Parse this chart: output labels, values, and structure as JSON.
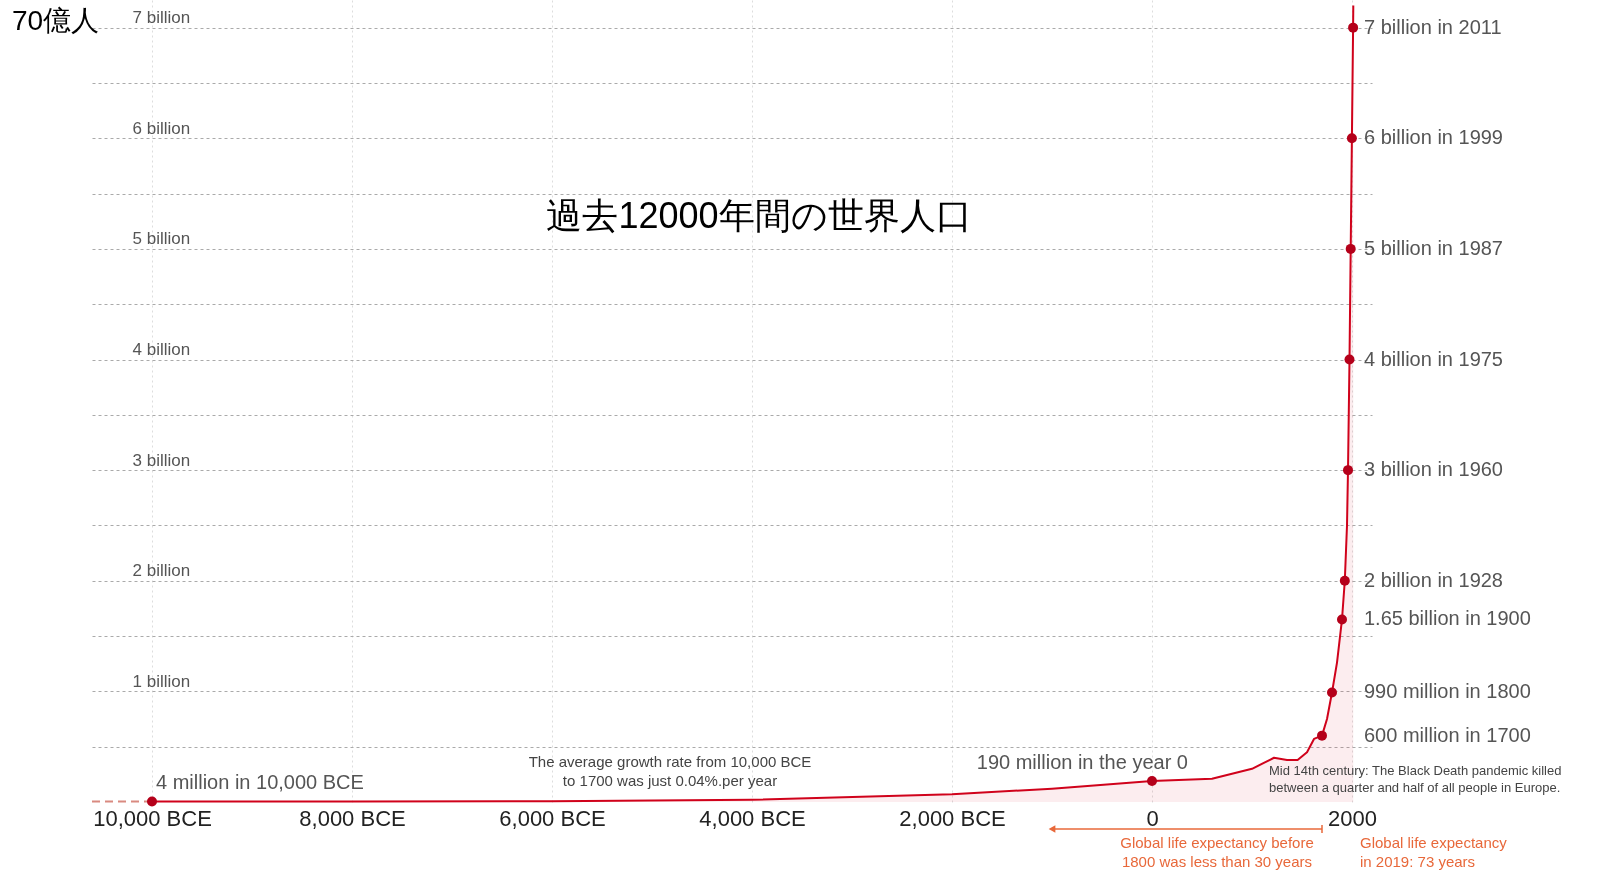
{
  "chart_data": {
    "type": "area",
    "title": "過去12000年間の世界人口",
    "ylabel": "70億人",
    "xlim": [
      -10600,
      2200
    ],
    "ylim": [
      0,
      7.25
    ],
    "xticks": [
      {
        "value": -10000,
        "label": "10,000 BCE"
      },
      {
        "value": -8000,
        "label": "8,000 BCE"
      },
      {
        "value": -6000,
        "label": "6,000 BCE"
      },
      {
        "value": -4000,
        "label": "4,000 BCE"
      },
      {
        "value": -2000,
        "label": "2,000 BCE"
      },
      0,
      2000
    ],
    "yticks": [
      {
        "value": 0.5,
        "label": null
      },
      {
        "value": 1,
        "label": "1 billion"
      },
      {
        "value": 1.5,
        "label": null
      },
      {
        "value": 2,
        "label": "2 billion"
      },
      {
        "value": 2.5,
        "label": null
      },
      {
        "value": 3,
        "label": "3 billion"
      },
      {
        "value": 3.5,
        "label": null
      },
      {
        "value": 4,
        "label": "4 billion"
      },
      {
        "value": 4.5,
        "label": null
      },
      {
        "value": 5,
        "label": "5 billion"
      },
      {
        "value": 5.5,
        "label": null
      },
      {
        "value": 6,
        "label": "6 billion"
      },
      {
        "value": 6.5,
        "label": null
      },
      {
        "value": 7,
        "label": "7 billion"
      }
    ],
    "grid": true,
    "series": [
      {
        "color": "#d0021b",
        "x": [
          -10000,
          -8000,
          -6000,
          -4000,
          -2000,
          -1000,
          0,
          600,
          1000,
          1220,
          1350,
          1456,
          1550,
          1620,
          1700,
          1750,
          1800,
          1850,
          1900,
          1928,
          1950,
          1960,
          1975,
          1987,
          1999,
          2011,
          2013
        ],
        "values": [
          0.004,
          0.005,
          0.007,
          0.02,
          0.07,
          0.12,
          0.19,
          0.21,
          0.3,
          0.4,
          0.38,
          0.38,
          0.45,
          0.57,
          0.6,
          0.75,
          0.99,
          1.26,
          1.65,
          2,
          2.5,
          3,
          4,
          5,
          6,
          7,
          7.2
        ]
      },
      {
        "type": "line",
        "color": "#d98a80",
        "line_style": "dashed",
        "x": [
          -10600,
          -10000
        ],
        "values": [
          0.004,
          0.004
        ]
      },
      {
        "type": "scatter",
        "color": "#b5001a",
        "marker": "circle",
        "x": [
          -10000,
          0,
          1700,
          1800,
          1900,
          1928,
          1960,
          1975,
          1987,
          1999,
          2011
        ],
        "values": [
          0.004,
          0.19,
          0.6,
          0.99,
          1.65,
          2,
          3,
          4,
          5,
          6,
          7
        ],
        "value_labels": [
          "4 million in 10,000 BCE",
          "190 million in the year 0",
          "600 million in 1700",
          "990 million in 1800",
          "1.65 billion in 1900",
          "2 billion in 1928",
          "3 billion in 1960",
          "4 billion in 1975",
          "5 billion in 1987",
          "6 billion in 1999",
          "7 billion in 2011"
        ]
      }
    ],
    "annotations": [
      "The average growth rate from 10,000 BCE\nto 1700 was just  0.04%.per year",
      "Mid 14th century: The Black Death pandemic killed\nbetween a quarter and half of all people in Europe.",
      "Global life expectancy before\n1800 was less than 30 years",
      "Global life expectancy\nin 2019: 73 years"
    ]
  }
}
